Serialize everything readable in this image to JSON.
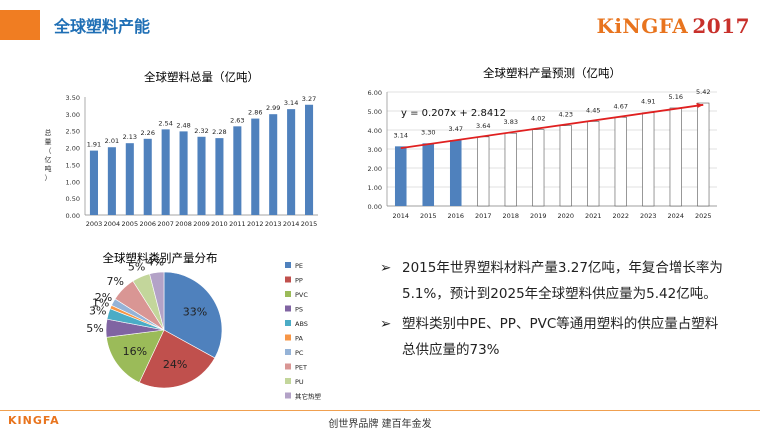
{
  "header": {
    "title": "全球塑料产能",
    "logo_brand": "KiNGFA",
    "logo_year": "2017"
  },
  "footer": {
    "brand": "KINGFA",
    "slogan": "创世界品牌 建百年金发"
  },
  "bullets": [
    {
      "marker": "➢",
      "text": "2015年世界塑料材料产量3.27亿吨，年复合增长率为5.1%，预计到2025年全球塑料供应量为5.42亿吨。"
    },
    {
      "marker": "➢",
      "text": "塑料类别中PE、PP、PVC等通用塑料的供应量占塑料总供应量的73%"
    }
  ],
  "colors": {
    "accent_orange": "#f07d22",
    "title_blue": "#1f6fb5",
    "bar_blue": "#4f81bd",
    "trend_red": "#e02020"
  },
  "chart_data": [
    {
      "type": "bar",
      "title": "全球塑料总量（亿吨）",
      "ylabel": "总量（亿吨）",
      "categories": [
        "2003",
        "2004",
        "2005",
        "2006",
        "2007",
        "2008",
        "2009",
        "2010",
        "2011",
        "2012",
        "2013",
        "2014",
        "2015"
      ],
      "values": [
        1.91,
        2.01,
        2.13,
        2.26,
        2.54,
        2.48,
        2.32,
        2.28,
        2.63,
        2.86,
        2.99,
        3.14,
        3.27
      ],
      "labels": [
        "1.91",
        "2.01",
        "2.13",
        "2.26",
        "2.54",
        "2.48",
        "2.32",
        "2.28",
        "2.63",
        "2.86",
        "2.99",
        "3.14",
        "3.27"
      ],
      "ylim": [
        0,
        3.5
      ],
      "yticks": [
        "0.00",
        "0.50",
        "1.00",
        "1.50",
        "2.00",
        "2.50",
        "3.00",
        "3.50"
      ]
    },
    {
      "type": "bar",
      "title": "全球塑料产量预测（亿吨）",
      "categories": [
        "2014",
        "2015",
        "2016",
        "2017",
        "2018",
        "2019",
        "2020",
        "2021",
        "2022",
        "2023",
        "2024",
        "2025"
      ],
      "values": [
        3.14,
        3.3,
        3.47,
        3.64,
        3.83,
        4.02,
        4.23,
        4.45,
        4.67,
        4.91,
        5.16,
        5.42
      ],
      "labels": [
        "3.14",
        "3.30",
        "3.47",
        "3.64",
        "3.83",
        "4.02",
        "4.23",
        "4.45",
        "4.67",
        "4.91",
        "5.16",
        "5.42"
      ],
      "actual_count": 3,
      "ylim": [
        0,
        6
      ],
      "yticks": [
        "0.00",
        "1.00",
        "2.00",
        "3.00",
        "4.00",
        "5.00",
        "6.00"
      ],
      "trendline": {
        "equation": "y = 0.207x + 2.8412",
        "slope": 0.207,
        "intercept": 2.8412
      }
    },
    {
      "type": "pie",
      "title": "全球塑料类别产量分布",
      "slices": [
        {
          "name": "PE",
          "value": 33,
          "label": "33%",
          "color": "#4f81bd"
        },
        {
          "name": "PP",
          "value": 24,
          "label": "24%",
          "color": "#c0504d"
        },
        {
          "name": "PVC",
          "value": 16,
          "label": "16%",
          "color": "#9bbb59"
        },
        {
          "name": "PS",
          "value": 5,
          "label": "5%",
          "color": "#8064a2"
        },
        {
          "name": "ABS",
          "value": 3,
          "label": "3%",
          "color": "#4bacc6"
        },
        {
          "name": "PA",
          "value": 1,
          "label": "1%",
          "color": "#f79646"
        },
        {
          "name": "PC",
          "value": 2,
          "label": "2%",
          "color": "#95b3d7"
        },
        {
          "name": "PET",
          "value": 7,
          "label": "7%",
          "color": "#d99694"
        },
        {
          "name": "PU",
          "value": 5,
          "label": "5%",
          "color": "#c3d69b"
        },
        {
          "name": "其它热塑",
          "value": 4,
          "label": "4%",
          "color": "#b3a2c7"
        }
      ]
    }
  ]
}
